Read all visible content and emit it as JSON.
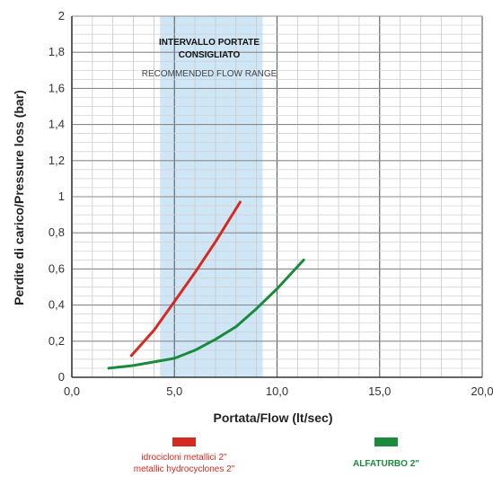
{
  "chart_data": {
    "type": "line",
    "xlabel": "Portata/Flow (lt/sec)",
    "ylabel": "Perdite di carico/Pressure loss (bar)",
    "xlim": [
      0,
      20
    ],
    "ylim": [
      0,
      2
    ],
    "x_ticks": [
      "0,0",
      "5,0",
      "10,0",
      "15,0",
      "20,0"
    ],
    "y_ticks": [
      "0",
      "0,2",
      "0,4",
      "0,6",
      "0,8",
      "1",
      "1,2",
      "1,4",
      "1,6",
      "1,8",
      "2"
    ],
    "grid": true,
    "recommended_band": {
      "x_range": [
        4.3,
        9.3
      ],
      "title_line1": "INTERVALLO PORTATE",
      "title_line2": "CONSIGLIATO",
      "subtitle": "RECOMMENDED FLOW RANGE",
      "color": "#cfe6f6"
    },
    "series": [
      {
        "name": "idrocicloni metallici 2\" / metallic hydrocyclones 2\"",
        "color": "#d42a22",
        "x": [
          2.9,
          4.0,
          5.0,
          6.0,
          7.0,
          7.6,
          8.2
        ],
        "y": [
          0.12,
          0.26,
          0.42,
          0.58,
          0.75,
          0.86,
          0.97
        ]
      },
      {
        "name": "ALFATURBO 2\"",
        "color": "#1a8a3c",
        "x": [
          1.8,
          3.0,
          4.0,
          5.0,
          6.0,
          7.0,
          8.0,
          9.0,
          10.0,
          11.3
        ],
        "y": [
          0.05,
          0.065,
          0.085,
          0.105,
          0.15,
          0.21,
          0.28,
          0.38,
          0.49,
          0.65
        ]
      }
    ]
  },
  "legend": {
    "red_line1": "idrocicloni metallici 2\"",
    "red_line2": "metallic hydrocyclones 2\"",
    "green_label": "ALFATURBO 2\"",
    "red_color": "#d42a22",
    "green_color": "#1a8a3c"
  }
}
